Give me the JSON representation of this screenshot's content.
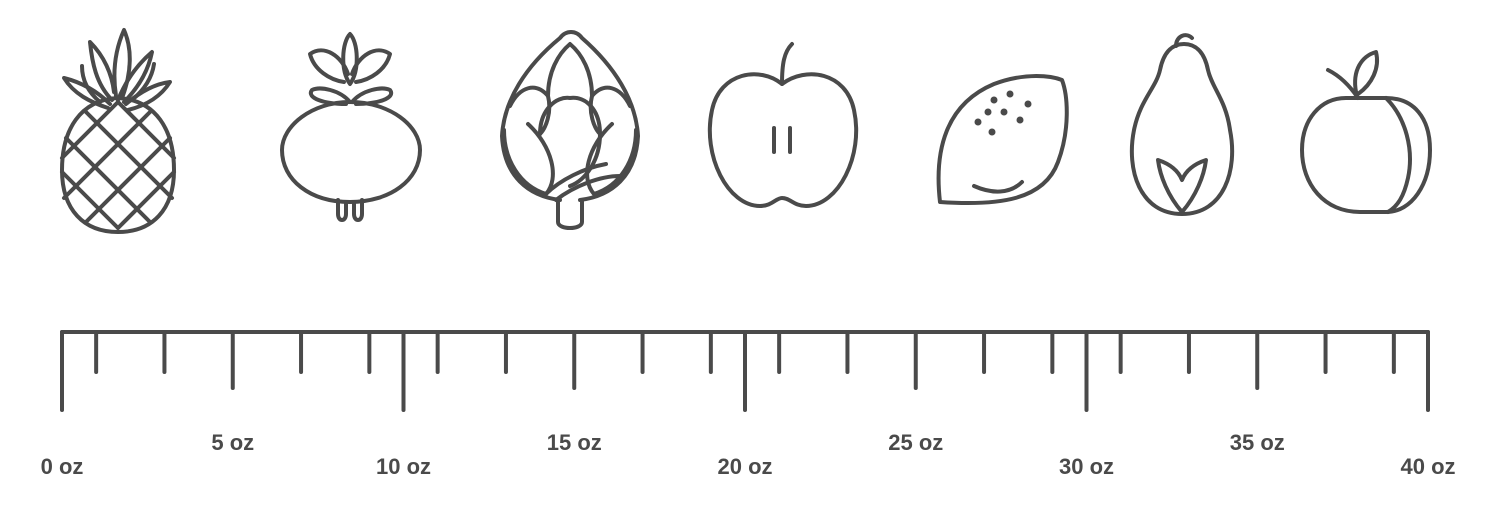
{
  "icons": [
    {
      "name": "pineapple"
    },
    {
      "name": "beet"
    },
    {
      "name": "artichoke"
    },
    {
      "name": "apple"
    },
    {
      "name": "lemon"
    },
    {
      "name": "papaya"
    },
    {
      "name": "peach"
    }
  ],
  "scale": {
    "unit": "oz",
    "min": 0,
    "max": 40,
    "minor_step": 1,
    "labels": [
      "0 oz",
      "5 oz",
      "10 oz",
      "15 oz",
      "20 oz",
      "25 oz",
      "30 oz",
      "35 oz",
      "40 oz"
    ],
    "label_values": [
      0,
      5,
      10,
      15,
      20,
      25,
      30,
      35,
      40
    ]
  }
}
